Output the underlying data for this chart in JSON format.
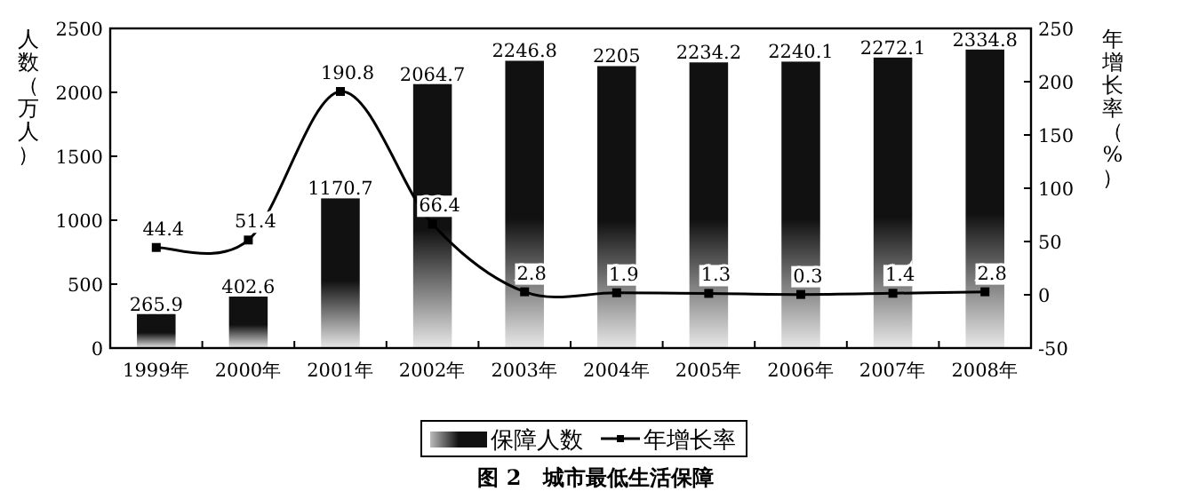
{
  "chart_data": {
    "type": "bar",
    "title": "图 2　城市最低生活保障",
    "ylabel": "人数（万人）",
    "y2label": "年增长率（%）",
    "categories": [
      "1999年",
      "2000年",
      "2001年",
      "2002年",
      "2003年",
      "2004年",
      "2005年",
      "2006年",
      "2007年",
      "2008年"
    ],
    "series": [
      {
        "name": "保障人数",
        "color": "#111111",
        "values": [
          265.9,
          402.6,
          1170.7,
          2064.7,
          2246.8,
          2205,
          2234.2,
          2240.1,
          2272.1,
          2334.8
        ]
      },
      {
        "name": "年增长率",
        "type": "line",
        "axis": "y2",
        "color": "#000000",
        "marker": "square",
        "values": [
          44.4,
          51.4,
          190.8,
          66.4,
          2.8,
          1.9,
          1.3,
          0.3,
          1.4,
          2.8
        ]
      }
    ],
    "ylim": [
      0,
      2500
    ],
    "yticks": [
      0,
      500,
      1000,
      1500,
      2000,
      2500
    ],
    "y2lim": [
      -50,
      250
    ],
    "y2ticks": [
      -50,
      0,
      50,
      100,
      150,
      200,
      250
    ],
    "data_labels": true,
    "legend": "bottom",
    "grid": false
  }
}
